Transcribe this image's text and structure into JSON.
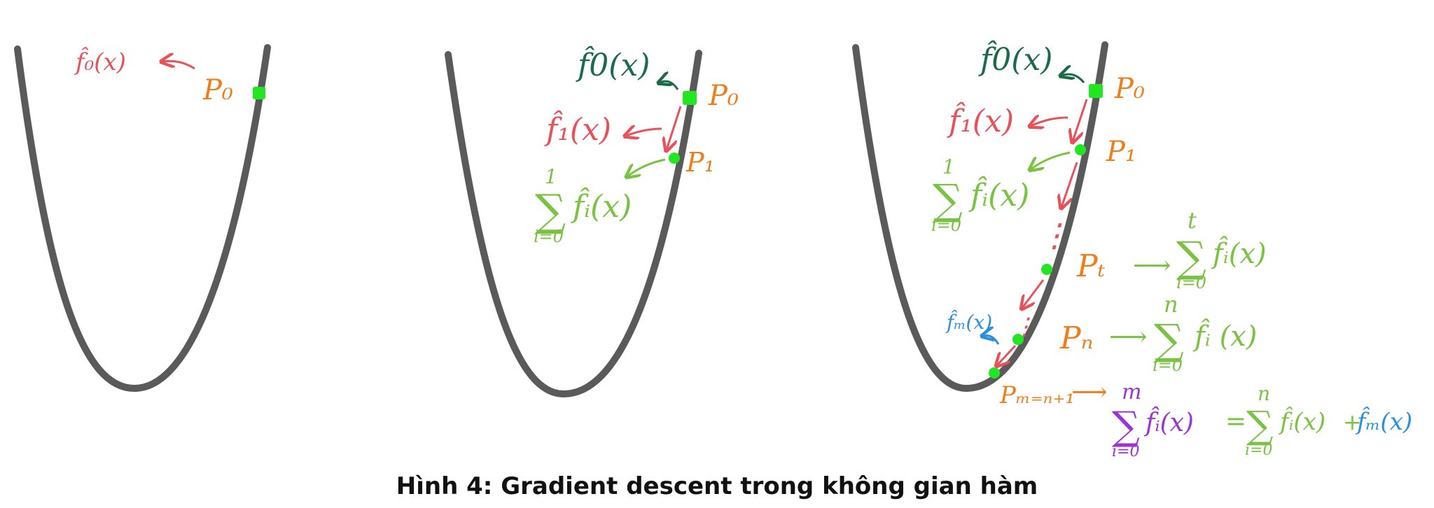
{
  "caption": "Hình 4: Gradient descent trong không gian hàm",
  "colors": {
    "curve": "#5a5a5a",
    "point": "#22e622",
    "p_label": "#f07d1a",
    "f0": "#1a6b4a",
    "f_red": "#e8505a",
    "sum_green": "#7ac241",
    "fm_blue": "#2a8fe0",
    "sum_purple": "#9a33d9"
  },
  "panel1": {
    "f0": "f̂₀(x)",
    "p0": "P₀"
  },
  "panel2": {
    "f0": "f̂0(x)",
    "p0": "P₀",
    "f1": "f̂₁(x)",
    "p1": "P₁",
    "sum_top": "1",
    "sum_bottom": "i=0",
    "sum_term": "f̂ᵢ(x)"
  },
  "panel3": {
    "f0": "f̂0(x)",
    "p0": "P₀",
    "f1": "f̂₁(x)",
    "p1": "P₁",
    "sum1_top": "1",
    "sum1_bottom": "i=0",
    "sum1_term": "f̂ᵢ(x)",
    "dots": "⋮",
    "pt": "Pₜ",
    "pt_arrow": "⟶",
    "sumt_top": "t",
    "sumt_bottom": "i=0",
    "sumt_term": "f̂ᵢ(x)",
    "pn": "Pₙ",
    "pn_arrow": "⟶",
    "sumn_top": "n",
    "sumn_bottom": "i=0",
    "sumn_term": "f̂ᵢ (x)",
    "fm": "f̂ₘ(x)",
    "pm": "Pₘ₌ₙ₊₁",
    "pm_arrow": "⟶",
    "summ_top": "m",
    "summ_bottom": "i=0",
    "summ_term": "f̂ᵢ(x)",
    "eq": "=",
    "sumn2_top": "n",
    "sumn2_bottom": "i=0",
    "sumn2_term": "f̂ᵢ(x)",
    "plus": "+",
    "fm2": "f̂ₘ(x)"
  }
}
